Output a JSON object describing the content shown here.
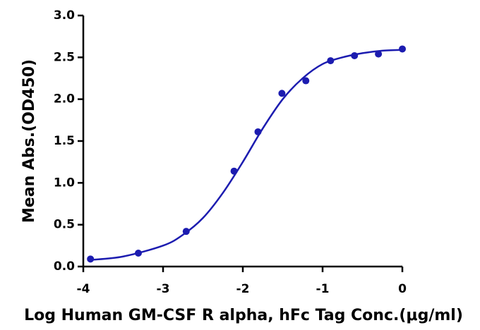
{
  "chart_data": {
    "type": "scatter",
    "x_label": "Log Human GM-CSF R alpha, hFc Tag Conc.(μg/ml)",
    "y_label": "Mean Abs.(OD450)",
    "color": "#1c1cb0",
    "series": [
      {
        "x": [
          -3.91,
          -3.31,
          -2.71,
          -2.11,
          -1.81,
          -1.51,
          -1.21,
          -0.9,
          -0.6,
          -0.3,
          0
        ],
        "values": [
          0.09,
          0.16,
          0.42,
          1.14,
          1.61,
          2.07,
          2.22,
          2.46,
          2.52,
          2.54,
          2.6
        ]
      }
    ],
    "fit_curve": {
      "x": [
        -3.9,
        -3.5,
        -3.0,
        -2.75,
        -2.5,
        -2.25,
        -2.0,
        -1.75,
        -1.5,
        -1.25,
        -1.0,
        -0.75,
        -0.5,
        -0.25,
        0
      ],
      "values": [
        0.08,
        0.12,
        0.25,
        0.38,
        0.58,
        0.88,
        1.25,
        1.65,
        2.0,
        2.25,
        2.42,
        2.5,
        2.55,
        2.58,
        2.59
      ]
    },
    "xlim": [
      -4,
      0
    ],
    "xticks": [
      -4,
      -3,
      -2,
      -1,
      0
    ],
    "ylim": [
      0,
      3
    ],
    "yticks": [
      {
        "value": 0,
        "label": "0.0"
      },
      {
        "value": 0.5,
        "label": "0.5"
      },
      {
        "value": 1,
        "label": "1.0"
      },
      {
        "value": 1.5,
        "label": "1.5"
      },
      {
        "value": 2,
        "label": "2.0"
      },
      {
        "value": 2.5,
        "label": "2.5"
      },
      {
        "value": 3,
        "label": "3.0"
      }
    ]
  }
}
